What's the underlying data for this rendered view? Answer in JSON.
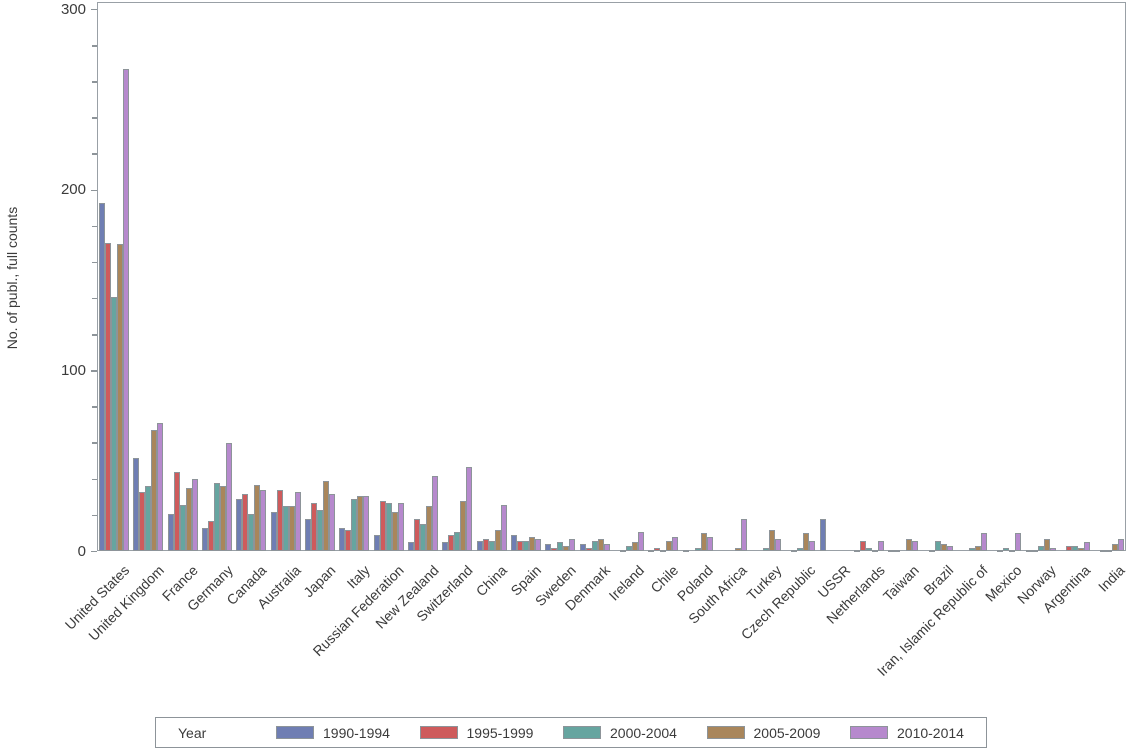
{
  "chart_data": {
    "type": "bar",
    "title": "",
    "xlabel": "",
    "ylabel": "No. of publ., full counts",
    "ylim": [
      0,
      300
    ],
    "yticks_major": [
      0,
      100,
      200,
      300
    ],
    "ytick_minor_step": 20,
    "grid": false,
    "legend_title": "Year",
    "legend_position": "bottom",
    "axis_color": "#99A0A6",
    "bar_outline_color": "#8D9499",
    "categories": [
      "United States",
      "United Kingdom",
      "France",
      "Germany",
      "Canada",
      "Australia",
      "Japan",
      "Italy",
      "Russian Federation",
      "New Zealand",
      "Switzerland",
      "China",
      "Spain",
      "Sweden",
      "Denmark",
      "Ireland",
      "Chile",
      "Poland",
      "South Africa",
      "Turkey",
      "Czech Republic",
      "USSR",
      "Netherlands",
      "Taiwan",
      "Brazil",
      "Iran, Islamic Republic of",
      "Mexico",
      "Norway",
      "Argentina",
      "India"
    ],
    "series": [
      {
        "name": "1990-1994",
        "color": "#6F7EB3",
        "values": [
          193,
          52,
          21,
          13,
          29,
          22,
          18,
          13,
          9,
          5,
          5,
          6,
          9,
          4,
          4,
          0,
          1,
          1,
          0,
          0,
          0,
          18,
          1,
          1,
          0,
          0,
          0,
          1,
          0,
          0
        ]
      },
      {
        "name": "1995-1999",
        "color": "#CE5B5C",
        "values": [
          171,
          33,
          44,
          17,
          32,
          34,
          27,
          12,
          28,
          18,
          9,
          7,
          6,
          2,
          2,
          1,
          2,
          0,
          0,
          0,
          1,
          0,
          6,
          1,
          1,
          0,
          1,
          1,
          3,
          1
        ]
      },
      {
        "name": "2000-2004",
        "color": "#66A5A0",
        "values": [
          141,
          36,
          26,
          38,
          21,
          25,
          23,
          29,
          27,
          15,
          11,
          6,
          6,
          5,
          6,
          3,
          1,
          2,
          0,
          2,
          2,
          0,
          2,
          0,
          6,
          2,
          2,
          3,
          3,
          1
        ]
      },
      {
        "name": "2005-2009",
        "color": "#A9865B",
        "values": [
          170,
          67,
          35,
          36,
          37,
          25,
          39,
          31,
          22,
          25,
          28,
          12,
          8,
          3,
          7,
          5,
          6,
          10,
          2,
          12,
          10,
          0,
          1,
          7,
          4,
          3,
          1,
          7,
          2,
          4
        ]
      },
      {
        "name": "2010-2014",
        "color": "#B689CD",
        "values": [
          267,
          71,
          40,
          60,
          34,
          33,
          32,
          31,
          27,
          42,
          47,
          26,
          7,
          7,
          4,
          11,
          8,
          8,
          18,
          7,
          6,
          0,
          6,
          6,
          3,
          10,
          10,
          2,
          5,
          7
        ]
      }
    ]
  }
}
